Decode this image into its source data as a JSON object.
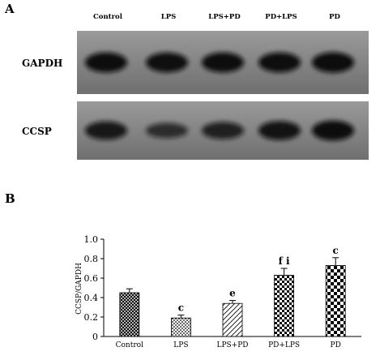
{
  "panels": {
    "a": "A",
    "b": "B"
  },
  "blot": {
    "lanes": [
      "Control",
      "LPS",
      "LPS+PD",
      "PD+LPS",
      "PD"
    ],
    "rows": [
      {
        "label": "GAPDH",
        "intensity": [
          0.92,
          0.9,
          0.92,
          0.91,
          0.95
        ]
      },
      {
        "label": "CCSP",
        "intensity": [
          0.8,
          0.55,
          0.7,
          0.85,
          0.92
        ]
      }
    ],
    "band_color": "#111111",
    "background": "#7d7d7d"
  },
  "chart_data": {
    "type": "bar",
    "categories": [
      "Control",
      "LPS",
      "LPS+PD",
      "PD+LPS",
      "PD"
    ],
    "values": [
      0.45,
      0.19,
      0.34,
      0.63,
      0.73
    ],
    "errors": [
      0.04,
      0.03,
      0.03,
      0.07,
      0.08
    ],
    "significance": [
      "",
      "c",
      "e",
      "f i",
      "c"
    ],
    "patterns": [
      "crosshatch",
      "dots",
      "diagonal",
      "checker-fine",
      "checker-large"
    ],
    "ylabel": "CCSP/GAPDH",
    "xlabel": "",
    "ylim": [
      0,
      1.0
    ],
    "yticks": [
      0,
      0.2,
      0.4,
      0.6,
      0.8,
      1.0
    ],
    "ytick_labels": [
      "0",
      "0.2",
      "0.4",
      "0.6",
      "0.8",
      "1.0"
    ]
  }
}
